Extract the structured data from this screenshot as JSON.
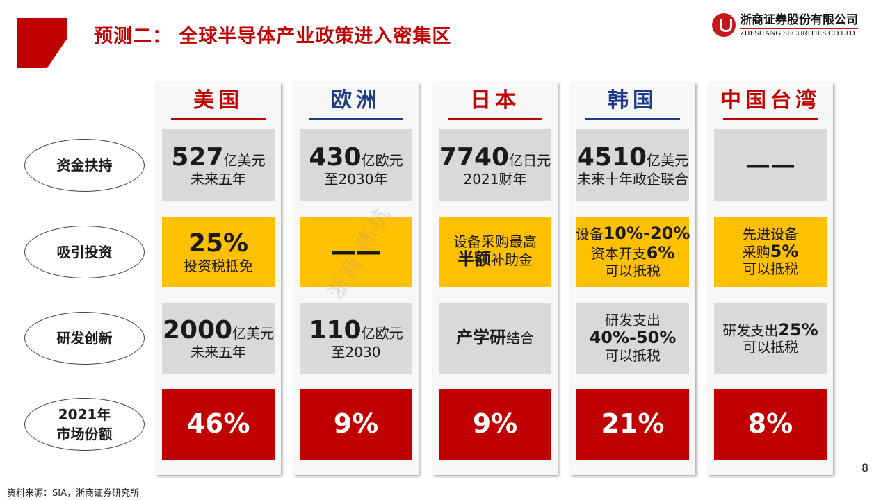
{
  "title": "预测二：  全球半导体产业政策进入密集区",
  "logo": {
    "cn": "浙商证券股份有限公司",
    "en": "ZHESHANG SECURITIES CO.LTD"
  },
  "watermark": "浙商 陈杭",
  "colors": {
    "red": "#C00000",
    "blue": "#1F3C88",
    "gray": "#D9D9D9",
    "yellow": "#FFC000"
  },
  "rows": [
    {
      "label": [
        "资金扶持"
      ],
      "fill": "#D9D9D9"
    },
    {
      "label": [
        "吸引投资"
      ],
      "fill": "#FFC000"
    },
    {
      "label": [
        "研发创新"
      ],
      "fill": "#D9D9D9"
    },
    {
      "label": [
        "2021年",
        "市场份额"
      ],
      "fill": "#C00000"
    }
  ],
  "regions": [
    {
      "name": "美国",
      "color": "#C00000",
      "cells": [
        [
          [
            {
              "t": "527",
              "s": "big"
            },
            {
              "t": "亿美元"
            }
          ],
          [
            {
              "t": "未来五年"
            }
          ]
        ],
        [
          [
            {
              "t": "25%",
              "s": "big"
            }
          ],
          [
            {
              "t": "投资税抵免"
            }
          ]
        ],
        [
          [
            {
              "t": "2000",
              "s": "big"
            },
            {
              "t": "亿美元"
            }
          ],
          [
            {
              "t": "未来五年"
            }
          ]
        ],
        [
          [
            {
              "t": "46%",
              "s": "share"
            }
          ]
        ]
      ]
    },
    {
      "name": "欧洲",
      "color": "#1F3C88",
      "cells": [
        [
          [
            {
              "t": "430",
              "s": "big"
            },
            {
              "t": "亿欧元"
            }
          ],
          [
            {
              "t": "至2030年"
            }
          ]
        ],
        [
          [
            {
              "t": "——",
              "s": "big"
            }
          ]
        ],
        [
          [
            {
              "t": "110",
              "s": "big"
            },
            {
              "t": "亿欧元"
            }
          ],
          [
            {
              "t": "至2030"
            }
          ]
        ],
        [
          [
            {
              "t": "9%",
              "s": "share"
            }
          ]
        ]
      ]
    },
    {
      "name": "日本",
      "color": "#C00000",
      "cells": [
        [
          [
            {
              "t": "7740",
              "s": "big"
            },
            {
              "t": "亿日元"
            }
          ],
          [
            {
              "t": "2021财年"
            }
          ]
        ],
        [
          [
            {
              "t": "设备采购最高"
            }
          ],
          [
            {
              "t": "半额",
              "s": "med"
            },
            {
              "t": "补助金"
            }
          ]
        ],
        [
          [
            {
              "t": "产学研",
              "s": "med"
            },
            {
              "t": "结合"
            }
          ]
        ],
        [
          [
            {
              "t": "9%",
              "s": "share"
            }
          ]
        ]
      ]
    },
    {
      "name": "韩国",
      "color": "#1F3C88",
      "cells": [
        [
          [
            {
              "t": "4510",
              "s": "big"
            },
            {
              "t": "亿美元"
            }
          ],
          [
            {
              "t": "未来十年政企联合"
            }
          ]
        ],
        [
          [
            {
              "t": "设备"
            },
            {
              "t": "10%-20%",
              "s": "med"
            }
          ],
          [
            {
              "t": "资本开支"
            },
            {
              "t": "6%",
              "s": "med"
            }
          ],
          [
            {
              "t": "可以抵税"
            }
          ]
        ],
        [
          [
            {
              "t": "研发支出"
            }
          ],
          [
            {
              "t": "40%-50%",
              "s": "med"
            }
          ],
          [
            {
              "t": "可以抵税"
            }
          ]
        ],
        [
          [
            {
              "t": "21%",
              "s": "share"
            }
          ]
        ]
      ]
    },
    {
      "name": "中国台湾",
      "color": "#C00000",
      "cells": [
        [
          [
            {
              "t": "——",
              "s": "big"
            }
          ]
        ],
        [
          [
            {
              "t": "先进设备"
            }
          ],
          [
            {
              "t": "采购"
            },
            {
              "t": "5%",
              "s": "med"
            }
          ],
          [
            {
              "t": "可以抵税"
            }
          ]
        ],
        [
          [
            {
              "t": "研发支出"
            },
            {
              "t": "25%",
              "s": "med"
            }
          ],
          [
            {
              "t": "可以抵税"
            }
          ]
        ],
        [
          [
            {
              "t": "8%",
              "s": "share"
            }
          ]
        ]
      ]
    }
  ],
  "source": "资料来源：SIA，浙商证券研究所",
  "page_number": "8"
}
